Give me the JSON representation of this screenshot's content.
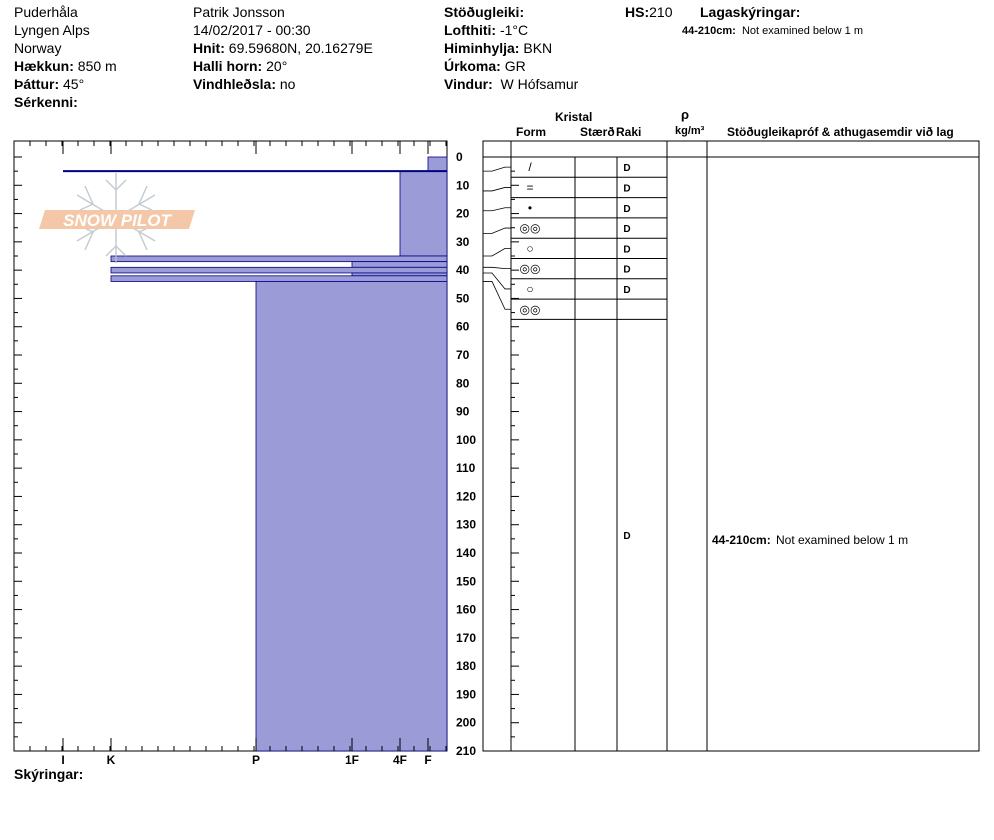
{
  "header": {
    "location": "Puderhåla",
    "range": "Lyngen Alps",
    "country": "Norway",
    "elevation_label": "Hækkun:",
    "elevation_value": "850 m",
    "aspect_label": "Þáttur:",
    "aspect_value": "45°",
    "features_label": "Sérkenni:",
    "observer": "Patrik Jonsson",
    "datetime": "14/02/2017 - 00:30",
    "coords_label": "Hnit:",
    "coords_value": "69.59680N, 20.16279E",
    "slope_label": "Halli horn:",
    "slope_value": "20°",
    "wind_loading_label": "Vindhleðsla:",
    "wind_loading_value": "no",
    "stability_label": "Stöðugleiki:",
    "stability_value": "",
    "air_temp_label": "Lofthiti:",
    "air_temp_value": "-1°C",
    "sky_label": "Himinhylja:",
    "sky_value": "BKN",
    "precip_label": "Úrkoma:",
    "precip_value": "GR",
    "wind_label": "Vindur:",
    "wind_value": "W Hófsamur",
    "hs_label": "HS:",
    "hs_value": "210",
    "layer_notes_label": "Lagaskýringar:",
    "layer_note_range": "44-210cm:",
    "layer_note_text": "Not examined below 1 m",
    "notes_label": "Skýringar:"
  },
  "columns": {
    "crystal": "Kristal",
    "form": "Form",
    "size": "Stærð",
    "moisture": "Raki",
    "density_symbol": "ρ",
    "density_unit": "kg/m³",
    "tests": "Stöðugleikapróf & athugasemdir við lag"
  },
  "comment": {
    "range": "44-210cm:",
    "text": "Not examined below 1 m"
  },
  "logo": "SNOW PILOT",
  "colors": {
    "hardness_fill": "#9b9bd7",
    "temp_line": "#000080",
    "logo": "#f0b48c"
  },
  "chart_data": {
    "type": "bar",
    "orientation": "horizontal",
    "ylabel": "",
    "xlabel": "",
    "depth_ticks": [
      0,
      10,
      20,
      30,
      40,
      50,
      60,
      70,
      80,
      90,
      100,
      110,
      120,
      130,
      140,
      150,
      160,
      170,
      180,
      190,
      200,
      210
    ],
    "hardness_labels": [
      "I",
      "K",
      "P",
      "1F",
      "4F",
      "F"
    ],
    "ylim": [
      0,
      210
    ],
    "layers": [
      {
        "top": 0,
        "bottom": 5,
        "hardness": "F"
      },
      {
        "top": 5,
        "bottom": 35,
        "hardness": "4F"
      },
      {
        "top": 35,
        "bottom": 37,
        "hardness": "K"
      },
      {
        "top": 37,
        "bottom": 39,
        "hardness": "1F"
      },
      {
        "top": 39,
        "bottom": 41,
        "hardness": "K"
      },
      {
        "top": 41,
        "bottom": 42,
        "hardness": "1F"
      },
      {
        "top": 42,
        "bottom": 44,
        "hardness": "K"
      },
      {
        "top": 44,
        "bottom": 210,
        "hardness": "P"
      }
    ],
    "grain_rows": [
      {
        "form": "/",
        "moisture": "D"
      },
      {
        "form": "=",
        "moisture": "D"
      },
      {
        "form": "•",
        "moisture": "D"
      },
      {
        "form": "◎◎",
        "moisture": "D"
      },
      {
        "form": "○",
        "moisture": "D"
      },
      {
        "form": "◎◎",
        "moisture": "D"
      },
      {
        "form": "○",
        "moisture": "D"
      },
      {
        "form": "◎◎",
        "moisture": ""
      }
    ],
    "grain_row_depths": [
      5,
      12,
      19,
      27,
      35,
      39,
      41,
      44
    ],
    "bottom_layer_moisture": "D"
  }
}
